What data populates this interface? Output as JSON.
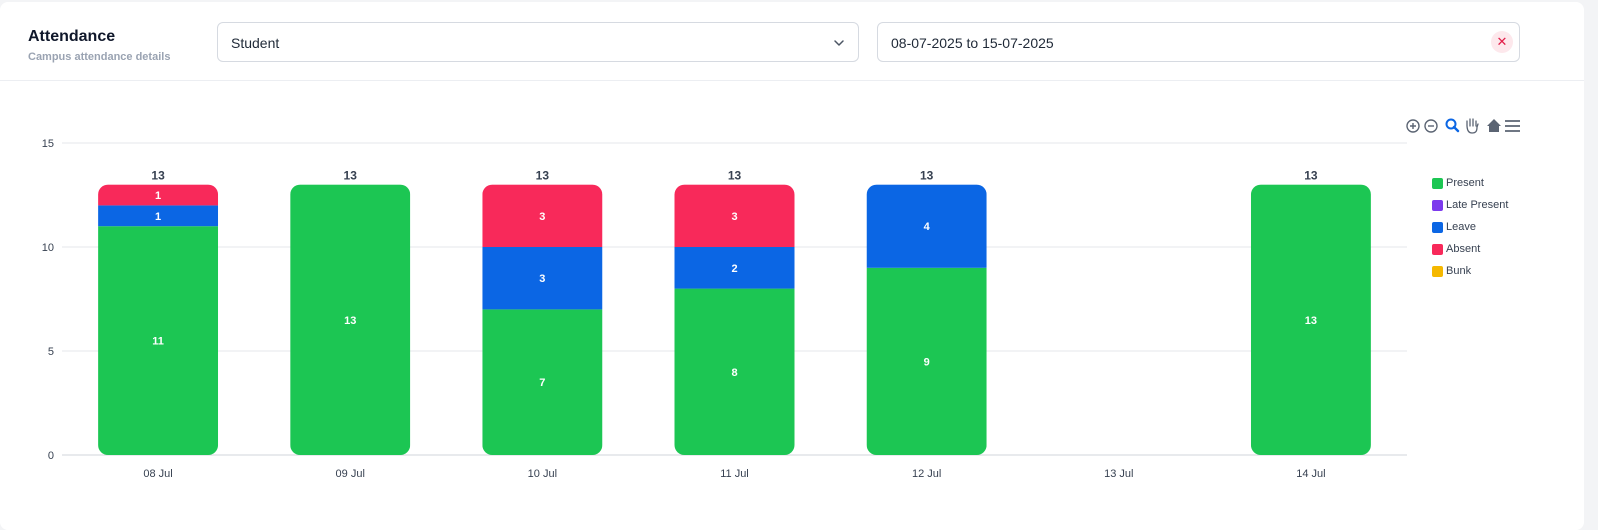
{
  "header": {
    "title": "Attendance",
    "subtitle": "Campus attendance details",
    "role_select": {
      "value": "Student"
    },
    "date_range": {
      "value": "08-07-2025 to 15-07-2025",
      "clear_label": "✕"
    }
  },
  "toolbar": [
    "zoom-in-icon",
    "zoom-out-icon",
    "zoom-selection-icon",
    "pan-hand-icon",
    "reset-home-icon",
    "menu-icon"
  ],
  "colors": {
    "Present": "#1cc653",
    "Late Present": "#7c3aed",
    "Leave": "#0b66e4",
    "Absent": "#f8295a",
    "Bunk": "#f5b800"
  },
  "chart_data": {
    "type": "bar",
    "stacked": true,
    "categories": [
      "08 Jul",
      "09 Jul",
      "10 Jul",
      "11 Jul",
      "12 Jul",
      "13 Jul",
      "14 Jul"
    ],
    "series": [
      {
        "name": "Present",
        "values": [
          11,
          13,
          7,
          8,
          9,
          0,
          13
        ]
      },
      {
        "name": "Late Present",
        "values": [
          0,
          0,
          0,
          0,
          0,
          0,
          0
        ]
      },
      {
        "name": "Leave",
        "values": [
          1,
          0,
          3,
          2,
          4,
          0,
          0
        ]
      },
      {
        "name": "Absent",
        "values": [
          1,
          0,
          3,
          3,
          0,
          0,
          0
        ]
      },
      {
        "name": "Bunk",
        "values": [
          0,
          0,
          0,
          0,
          0,
          0,
          0
        ]
      }
    ],
    "totals": [
      13,
      13,
      13,
      13,
      13,
      null,
      13
    ],
    "ylim": [
      0,
      15
    ],
    "yticks": [
      0,
      5,
      10,
      15
    ],
    "grid": true,
    "legend_position": "right"
  }
}
